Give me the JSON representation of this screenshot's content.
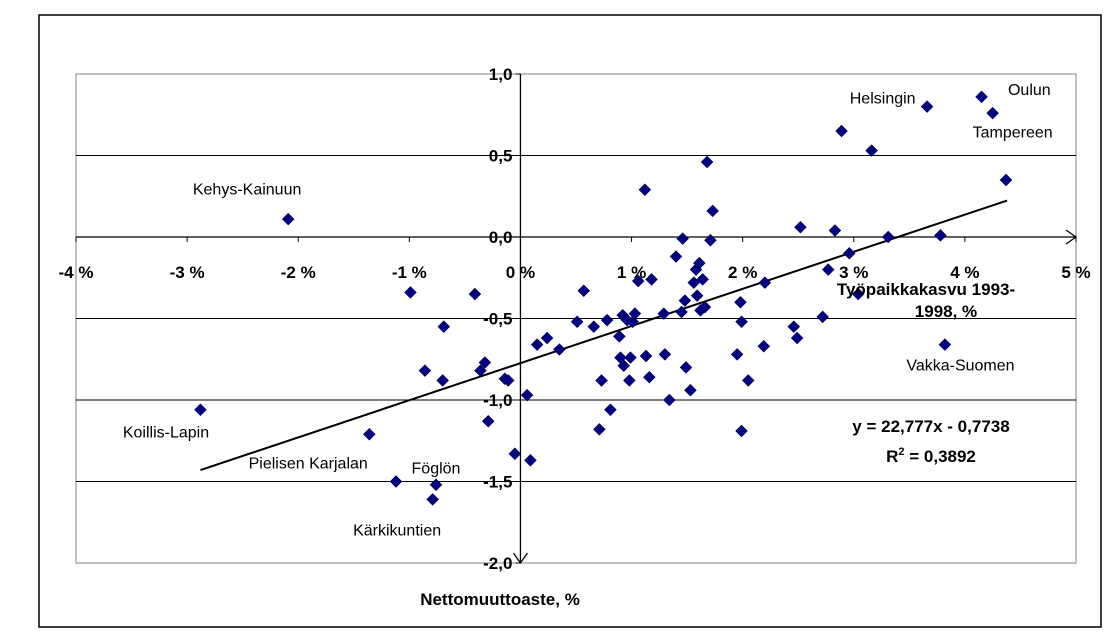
{
  "chart_data": {
    "type": "scatter",
    "xlabel": "Työpaikkakasvu 1993-1998, %",
    "xlabel_lines": [
      "Työpaikkakasvu 1993-",
      "1998, %"
    ],
    "ylabel": "Nettomuuttoaste, %",
    "xlim": [
      -0.04,
      0.05
    ],
    "ylim": [
      -2.0,
      1.0
    ],
    "x_ticks": [
      -0.04,
      -0.03,
      -0.02,
      -0.01,
      0,
      0.01,
      0.02,
      0.03,
      0.04,
      0.05
    ],
    "x_tick_labels": [
      "-4 %",
      "-3 %",
      "-2 %",
      "-1 %",
      "0 %",
      "1 %",
      "2 %",
      "3 %",
      "4 %",
      "5 %"
    ],
    "y_ticks": [
      1.0,
      0.5,
      0.0,
      -0.5,
      -1.0,
      -1.5,
      -2.0
    ],
    "y_tick_labels": [
      "1,0",
      "0,5",
      "0,0",
      "-0,5",
      "-1,0",
      "-1,5",
      "-2,0"
    ],
    "grid": "horizontal",
    "marker_color": "#000080",
    "trendline": {
      "equation": "y = 22,777x - 0,7738",
      "r2_label": "R",
      "r2_sup": "2",
      "r2_value": " = 0,3892",
      "slope": 22.777,
      "intercept": -0.7738,
      "x_range": [
        -0.0288,
        0.0438
      ]
    },
    "points": [
      {
        "x": -0.0288,
        "y": -1.06
      },
      {
        "x": -0.0209,
        "y": 0.11
      },
      {
        "x": -0.0136,
        "y": -1.21
      },
      {
        "x": -0.0112,
        "y": -1.5
      },
      {
        "x": -0.0099,
        "y": -0.34
      },
      {
        "x": -0.0086,
        "y": -0.82
      },
      {
        "x": -0.0079,
        "y": -1.61
      },
      {
        "x": -0.0076,
        "y": -1.52
      },
      {
        "x": -0.0069,
        "y": -0.55
      },
      {
        "x": -0.007,
        "y": -0.88
      },
      {
        "x": -0.0041,
        "y": -0.35
      },
      {
        "x": -0.0036,
        "y": -0.82
      },
      {
        "x": -0.0032,
        "y": -0.77
      },
      {
        "x": -0.0029,
        "y": -1.13
      },
      {
        "x": -0.0014,
        "y": -0.87
      },
      {
        "x": -0.0011,
        "y": -0.88
      },
      {
        "x": -0.0005,
        "y": -1.33
      },
      {
        "x": 0.0006,
        "y": -0.97
      },
      {
        "x": 0.0009,
        "y": -1.37
      },
      {
        "x": 0.0015,
        "y": -0.66
      },
      {
        "x": 0.0024,
        "y": -0.62
      },
      {
        "x": 0.0035,
        "y": -0.69
      },
      {
        "x": 0.0051,
        "y": -0.52
      },
      {
        "x": 0.0057,
        "y": -0.33
      },
      {
        "x": 0.0066,
        "y": -0.55
      },
      {
        "x": 0.0071,
        "y": -1.18
      },
      {
        "x": 0.0073,
        "y": -0.88
      },
      {
        "x": 0.0078,
        "y": -0.51
      },
      {
        "x": 0.0081,
        "y": -1.06
      },
      {
        "x": 0.0089,
        "y": -0.61
      },
      {
        "x": 0.009,
        "y": -0.74
      },
      {
        "x": 0.0092,
        "y": -0.48
      },
      {
        "x": 0.0093,
        "y": -0.79
      },
      {
        "x": 0.0096,
        "y": -0.51
      },
      {
        "x": 0.0098,
        "y": -0.88
      },
      {
        "x": 0.0099,
        "y": -0.74
      },
      {
        "x": 0.0101,
        "y": -0.52
      },
      {
        "x": 0.0103,
        "y": -0.47
      },
      {
        "x": 0.0106,
        "y": -0.27
      },
      {
        "x": 0.0112,
        "y": 0.29
      },
      {
        "x": 0.0113,
        "y": -0.73
      },
      {
        "x": 0.0116,
        "y": -0.86
      },
      {
        "x": 0.0118,
        "y": -0.26
      },
      {
        "x": 0.0129,
        "y": -0.47
      },
      {
        "x": 0.013,
        "y": -0.72
      },
      {
        "x": 0.0134,
        "y": -1.0
      },
      {
        "x": 0.014,
        "y": -0.12
      },
      {
        "x": 0.0145,
        "y": -0.46
      },
      {
        "x": 0.0146,
        "y": -0.01
      },
      {
        "x": 0.0149,
        "y": -0.8
      },
      {
        "x": 0.0148,
        "y": -0.39
      },
      {
        "x": 0.0153,
        "y": -0.94
      },
      {
        "x": 0.0156,
        "y": -0.28
      },
      {
        "x": 0.0158,
        "y": -0.2
      },
      {
        "x": 0.0159,
        "y": -0.36
      },
      {
        "x": 0.0161,
        "y": -0.16
      },
      {
        "x": 0.0162,
        "y": -0.45
      },
      {
        "x": 0.0164,
        "y": -0.26
      },
      {
        "x": 0.0166,
        "y": -0.43
      },
      {
        "x": 0.0168,
        "y": 0.46
      },
      {
        "x": 0.0171,
        "y": -0.02
      },
      {
        "x": 0.0173,
        "y": 0.16
      },
      {
        "x": 0.0195,
        "y": -0.72
      },
      {
        "x": 0.0198,
        "y": -0.4
      },
      {
        "x": 0.0199,
        "y": -0.52
      },
      {
        "x": 0.0199,
        "y": -1.19
      },
      {
        "x": 0.0205,
        "y": -0.88
      },
      {
        "x": 0.0219,
        "y": -0.67
      },
      {
        "x": 0.022,
        "y": -0.28
      },
      {
        "x": 0.0246,
        "y": -0.55
      },
      {
        "x": 0.0249,
        "y": -0.62
      },
      {
        "x": 0.0252,
        "y": 0.06
      },
      {
        "x": 0.0272,
        "y": -0.49
      },
      {
        "x": 0.0277,
        "y": -0.2
      },
      {
        "x": 0.0283,
        "y": 0.04
      },
      {
        "x": 0.0289,
        "y": 0.65
      },
      {
        "x": 0.0296,
        "y": -0.1
      },
      {
        "x": 0.0304,
        "y": -0.35
      },
      {
        "x": 0.0316,
        "y": 0.53
      },
      {
        "x": 0.0331,
        "y": 0.0
      },
      {
        "x": 0.0366,
        "y": 0.8
      },
      {
        "x": 0.0378,
        "y": 0.01
      },
      {
        "x": 0.0382,
        "y": -0.66
      },
      {
        "x": 0.0415,
        "y": 0.86
      },
      {
        "x": 0.0425,
        "y": 0.76
      },
      {
        "x": 0.0437,
        "y": 0.35
      }
    ],
    "annotations": [
      {
        "text": "Kehys-Kainuun",
        "x": -0.0246,
        "y": 0.26
      },
      {
        "text": "Koillis-Lapin",
        "x": -0.0319,
        "y": -1.23
      },
      {
        "text": "Pielisen Karjalan",
        "x": -0.0191,
        "y": -1.42
      },
      {
        "text": "Föglön",
        "x": -0.0076,
        "y": -1.45
      },
      {
        "text": "Kärkikuntien",
        "x": -0.0111,
        "y": -1.83
      },
      {
        "text": "Helsingin",
        "x": 0.0326,
        "y": 0.82
      },
      {
        "text": "Oulun",
        "x": 0.0458,
        "y": 0.87
      },
      {
        "text": "Tampereen",
        "x": 0.0443,
        "y": 0.61
      },
      {
        "text": "Vakka-Suomen",
        "x": 0.0396,
        "y": -0.82
      }
    ]
  }
}
